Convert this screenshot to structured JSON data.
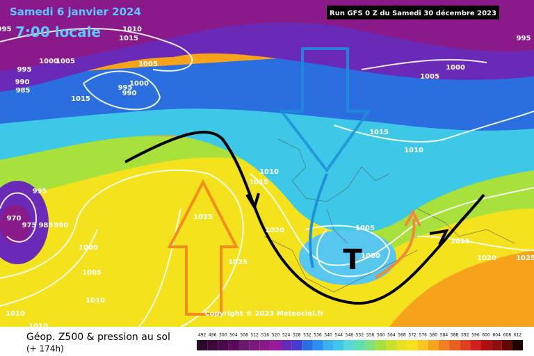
{
  "header": {
    "date": "Samedi 6 janvier 2024",
    "time": "7:00 locale",
    "run": "Run GFS 0 Z du Samedi 30 décembre 2023"
  },
  "annotation": "T",
  "copyright": "Copyright © 2023 Meteociel.fr",
  "footer": {
    "title": "Géop. Z500 & pression au sol",
    "subtitle": "(+ 174h)"
  },
  "isobar_labels": [
    "995",
    "1010",
    "1015",
    "1000",
    "1005",
    "1005",
    "995",
    "990",
    "985",
    "1000",
    "995",
    "990",
    "1015",
    "1005",
    "1000",
    "995",
    "1015",
    "1010",
    "1010",
    "1015",
    "995",
    "970",
    "975",
    "985",
    "990",
    "1025",
    "1020",
    "1005",
    "1000",
    "1015",
    "1020",
    "1025",
    "1025",
    "1000",
    "1005",
    "1010",
    "1010",
    "1010"
  ],
  "legend": {
    "ticks": [
      492,
      496,
      500,
      504,
      508,
      512,
      516,
      520,
      524,
      528,
      532,
      536,
      540,
      544,
      548,
      552,
      556,
      560,
      564,
      568,
      572,
      576,
      580,
      584,
      588,
      592,
      596,
      600,
      604,
      608,
      612
    ],
    "colors": [
      "#2a0a2a",
      "#3a0a3a",
      "#4a0a4a",
      "#5a0a5a",
      "#6a1a6a",
      "#7a1a7a",
      "#8a1a8a",
      "#9a1a9a",
      "#6a2ab8",
      "#4a3ad0",
      "#2a6ee0",
      "#2a90f0",
      "#3ab0f0",
      "#3ec8e8",
      "#58d8d8",
      "#60e0b0",
      "#80e080",
      "#a8e03c",
      "#c8e030",
      "#e8e020",
      "#f4e31c",
      "#f8c820",
      "#f7a21b",
      "#f08020",
      "#e86020",
      "#e04020",
      "#d02020",
      "#b01010",
      "#901010",
      "#600808",
      "#200000"
    ]
  }
}
